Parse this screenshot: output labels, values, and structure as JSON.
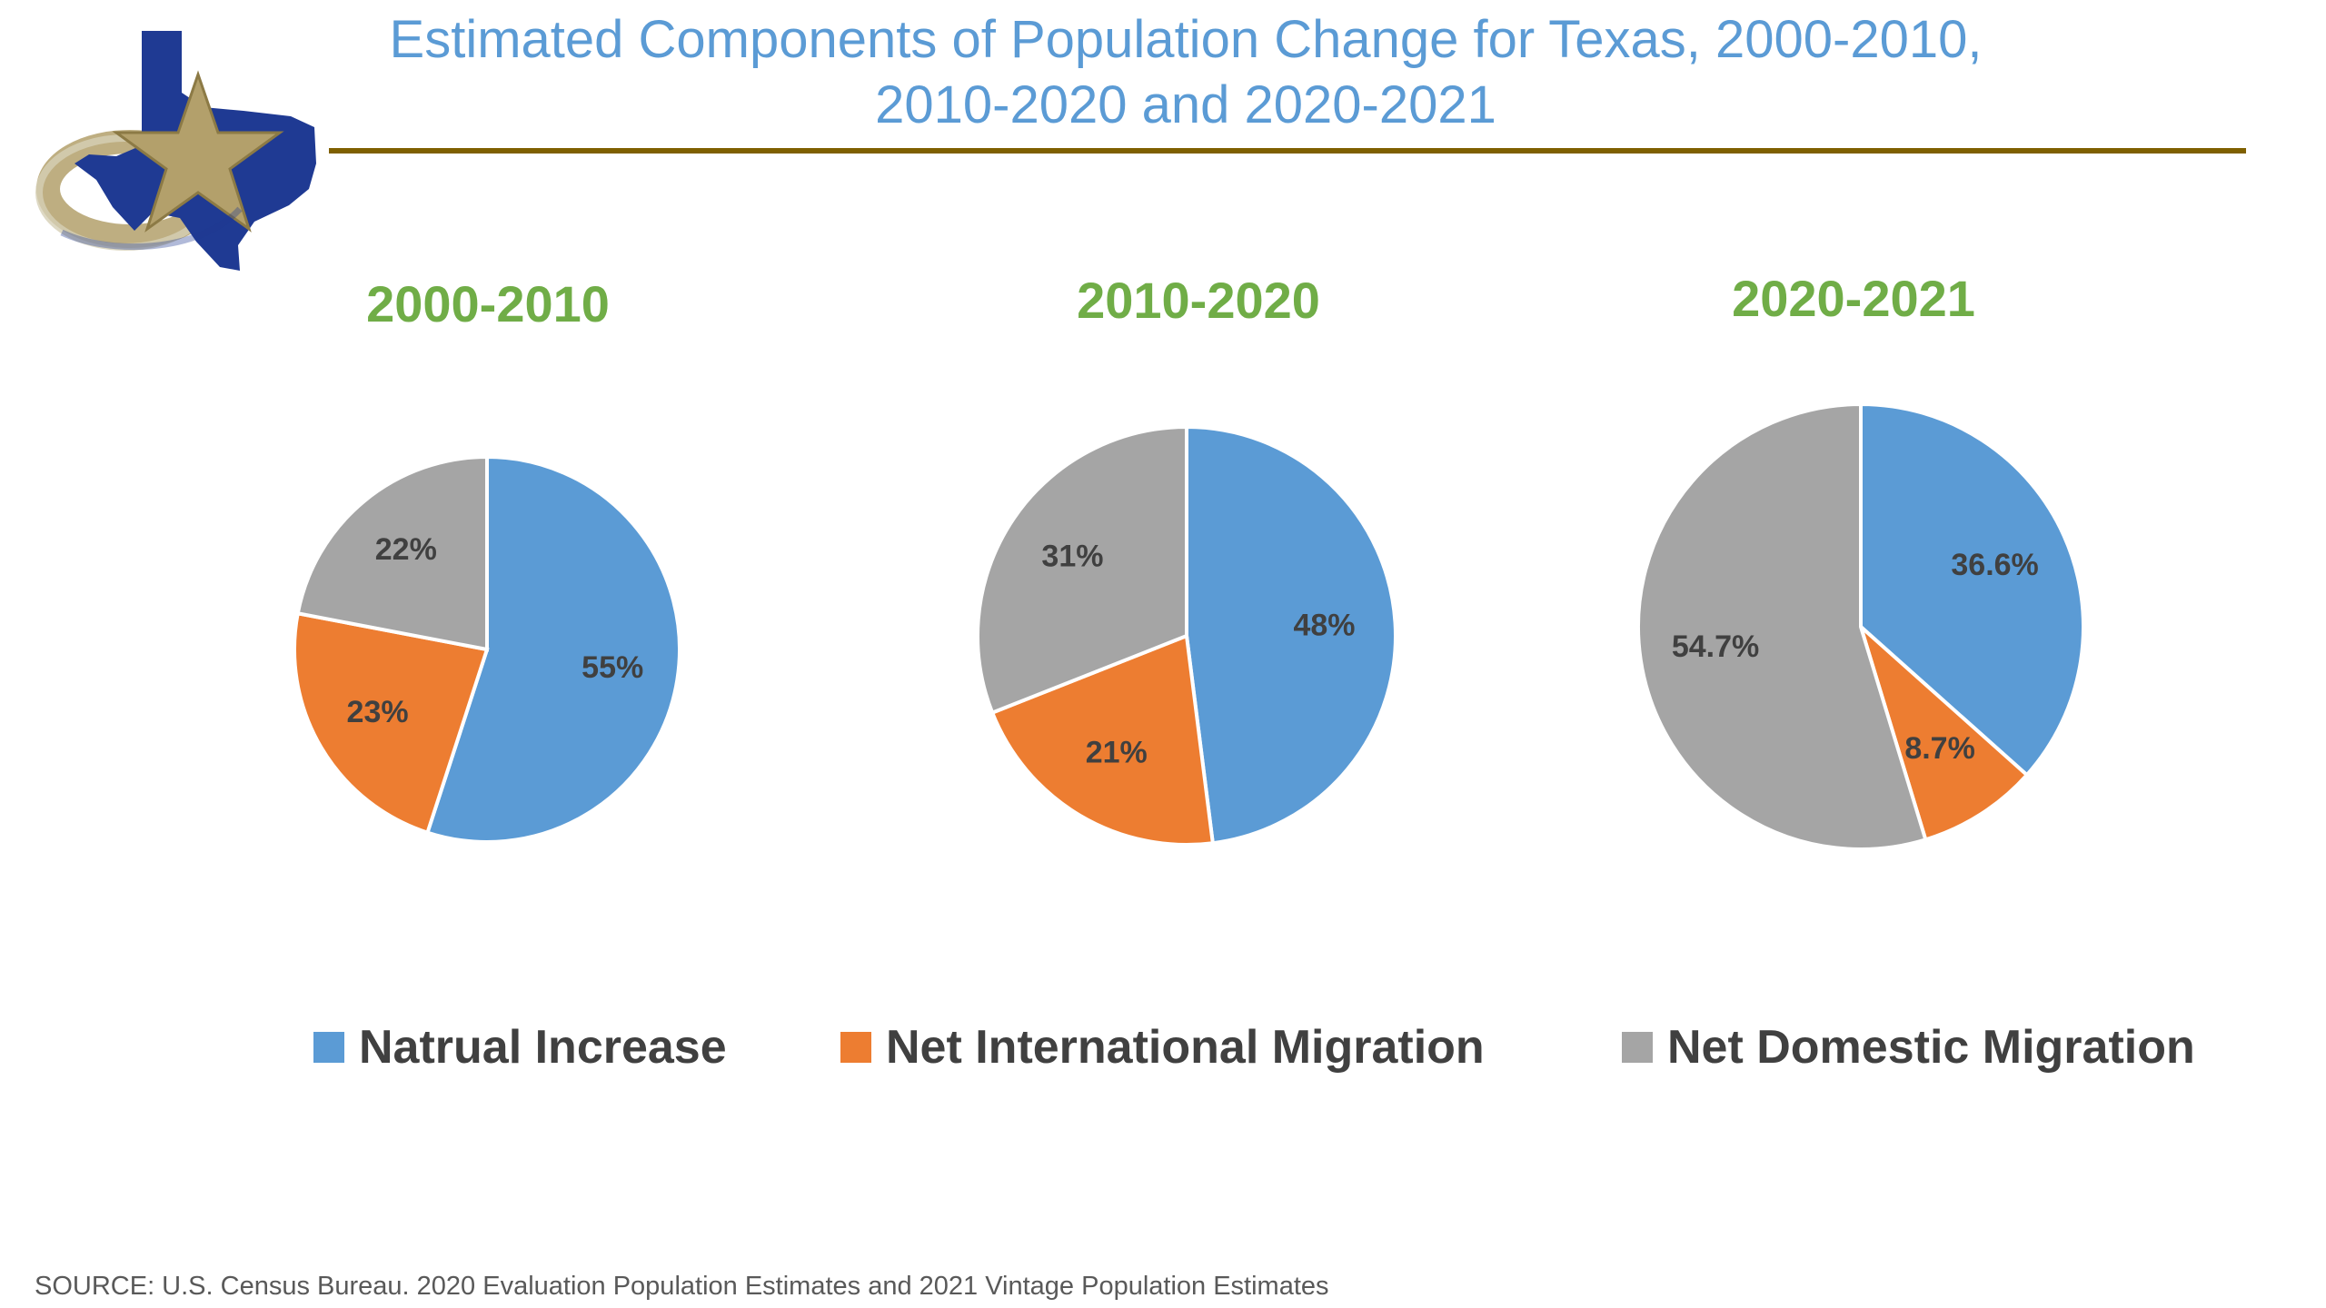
{
  "title_line1": "Estimated Components of Population Change for Texas, 2000-2010,",
  "title_line2": "2010-2020 and 2020-2021",
  "chart_data": [
    {
      "type": "pie",
      "title": "2000-2010",
      "categories": [
        "Natrual Increase",
        "Net International Migration",
        "Net Domestic Migration"
      ],
      "values": [
        55,
        23,
        22
      ],
      "labels": [
        "55%",
        "23%",
        "22%"
      ]
    },
    {
      "type": "pie",
      "title": "2010-2020",
      "categories": [
        "Natrual Increase",
        "Net International Migration",
        "Net Domestic Migration"
      ],
      "values": [
        48,
        21,
        31
      ],
      "labels": [
        "48%",
        "21%",
        "31%"
      ]
    },
    {
      "type": "pie",
      "title": "2020-2021",
      "categories": [
        "Natrual Increase",
        "Net International Migration",
        "Net Domestic Migration"
      ],
      "values": [
        36.6,
        8.7,
        54.7
      ],
      "labels": [
        "36.6%",
        "8.7%",
        "54.7%"
      ]
    }
  ],
  "legend": [
    {
      "label": "Natrual Increase",
      "color": "#5b9bd5"
    },
    {
      "label": "Net International Migration",
      "color": "#ed7d31"
    },
    {
      "label": "Net Domestic Migration",
      "color": "#a5a5a5"
    }
  ],
  "colors": {
    "title": "#5b9bd5",
    "period_title": "#70ad47",
    "rule": "#7f6000",
    "natural_increase": "#5b9bd5",
    "net_international": "#ed7d31",
    "net_domestic": "#a5a5a5",
    "data_label": "#404040",
    "logo_blue": "#1f3a93",
    "logo_gold": "#b3a06b"
  },
  "icons": {
    "logo": "texas-star-swoosh-logo"
  },
  "source": "SOURCE: U.S. Census Bureau. 2020 Evaluation Population Estimates and 2021 Vintage Population Estimates"
}
